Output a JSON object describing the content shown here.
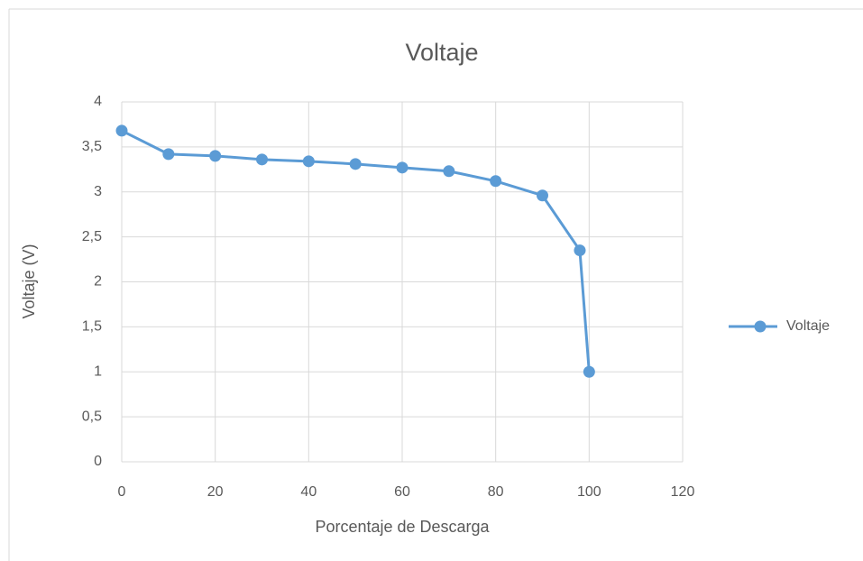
{
  "chart_data": {
    "type": "line",
    "title": "Voltaje",
    "x_label": "Porcentaje de Descarga",
    "y_label": "Voltaje (V)",
    "x": [
      0,
      10,
      20,
      30,
      40,
      50,
      60,
      70,
      80,
      90,
      98,
      100
    ],
    "series": [
      {
        "name": "Voltaje",
        "color": "#5b9bd5",
        "values": [
          3.68,
          3.42,
          3.4,
          3.36,
          3.34,
          3.31,
          3.27,
          3.23,
          3.12,
          2.96,
          2.35,
          1.0
        ]
      }
    ],
    "xlim": [
      0,
      120
    ],
    "xticks": [
      0,
      20,
      40,
      60,
      80,
      100,
      120
    ],
    "ylim": [
      0,
      4
    ],
    "yticks": [
      0,
      {
        "value": 0.5,
        "label": "0,5"
      },
      1,
      {
        "value": 1.5,
        "label": "1,5"
      },
      2,
      {
        "value": 2.5,
        "label": "2,5"
      },
      3,
      {
        "value": 3.5,
        "label": "3,5"
      },
      4
    ],
    "grid": true,
    "legend": "right"
  }
}
